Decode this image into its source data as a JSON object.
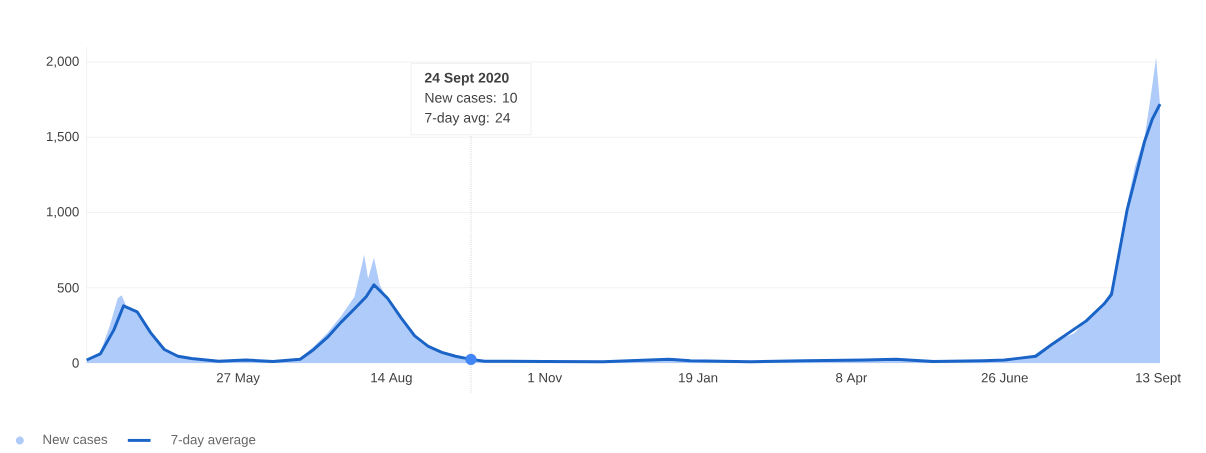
{
  "chart_data": {
    "type": "area",
    "xlim": [
      "2020-03-10",
      "2021-09-14"
    ],
    "ylim": [
      0,
      2100
    ],
    "xticks": [
      {
        "value": "2020-05-27",
        "label": "27 May"
      },
      {
        "value": "2020-08-14",
        "label": "14 Aug"
      },
      {
        "value": "2020-11-01",
        "label": "1 Nov"
      },
      {
        "value": "2021-01-19",
        "label": "19 Jan"
      },
      {
        "value": "2021-04-08",
        "label": "8 Apr"
      },
      {
        "value": "2021-06-26",
        "label": "26 June"
      },
      {
        "value": "2021-09-13",
        "label": "13 Sept"
      }
    ],
    "yticks": [
      {
        "value": 0,
        "label": "0"
      },
      {
        "value": 500,
        "label": "500"
      },
      {
        "value": 1000,
        "label": "1,000"
      },
      {
        "value": 1500,
        "label": "1,500"
      },
      {
        "value": 2000,
        "label": "2,000"
      }
    ],
    "grid": "y",
    "legend": "bottom left",
    "series": [
      {
        "name": "New cases",
        "color": "#aecbfa",
        "x": [
          "2020-03-10",
          "2020-03-17",
          "2020-03-22",
          "2020-03-26",
          "2020-03-28",
          "2020-03-31",
          "2020-04-05",
          "2020-04-12",
          "2020-04-19",
          "2020-04-26",
          "2020-05-10",
          "2020-05-24",
          "2020-06-14",
          "2020-06-28",
          "2020-07-05",
          "2020-07-12",
          "2020-07-19",
          "2020-07-26",
          "2020-07-31",
          "2020-08-02",
          "2020-08-05",
          "2020-08-08",
          "2020-08-12",
          "2020-08-19",
          "2020-08-26",
          "2020-09-02",
          "2020-09-09",
          "2020-09-16",
          "2020-09-24",
          "2020-10-15",
          "2020-12-01",
          "2021-01-04",
          "2021-02-15",
          "2021-04-15",
          "2021-05-01",
          "2021-06-15",
          "2021-07-10",
          "2021-07-21",
          "2021-08-01",
          "2021-08-07",
          "2021-08-16",
          "2021-08-20",
          "2021-08-28",
          "2021-09-01",
          "2021-09-06",
          "2021-09-09",
          "2021-09-12",
          "2021-09-14"
        ],
        "values": [
          20,
          70,
          250,
          430,
          450,
          360,
          330,
          190,
          90,
          45,
          15,
          15,
          10,
          30,
          110,
          200,
          310,
          440,
          720,
          560,
          700,
          520,
          420,
          290,
          170,
          100,
          65,
          40,
          10,
          10,
          8,
          25,
          8,
          20,
          25,
          15,
          45,
          140,
          200,
          290,
          400,
          480,
          1050,
          1300,
          1500,
          1750,
          2030,
          1720
        ]
      },
      {
        "name": "7-day average",
        "type": "line",
        "color": "#1a63c7",
        "line_style": "solid",
        "x": [
          "2020-03-10",
          "2020-03-17",
          "2020-03-24",
          "2020-03-29",
          "2020-04-05",
          "2020-04-12",
          "2020-04-19",
          "2020-04-26",
          "2020-05-03",
          "2020-05-17",
          "2020-05-31",
          "2020-06-14",
          "2020-06-28",
          "2020-07-05",
          "2020-07-12",
          "2020-07-19",
          "2020-07-26",
          "2020-08-01",
          "2020-08-05",
          "2020-08-12",
          "2020-08-19",
          "2020-08-26",
          "2020-09-02",
          "2020-09-09",
          "2020-09-16",
          "2020-09-24",
          "2020-10-01",
          "2020-11-01",
          "2020-12-01",
          "2021-01-04",
          "2021-01-15",
          "2021-02-15",
          "2021-03-15",
          "2021-04-15",
          "2021-05-01",
          "2021-05-20",
          "2021-06-15",
          "2021-06-26",
          "2021-07-12",
          "2021-07-21",
          "2021-08-07",
          "2021-08-16",
          "2021-08-20",
          "2021-08-28",
          "2021-09-06",
          "2021-09-10",
          "2021-09-14"
        ],
        "values": [
          20,
          60,
          220,
          380,
          340,
          200,
          90,
          45,
          30,
          12,
          20,
          10,
          25,
          90,
          170,
          270,
          360,
          440,
          520,
          430,
          300,
          180,
          110,
          70,
          45,
          24,
          12,
          10,
          8,
          25,
          15,
          8,
          15,
          20,
          25,
          10,
          15,
          20,
          45,
          130,
          280,
          390,
          455,
          1014,
          1470,
          1620,
          1720
        ]
      },
      {
        "type": "scatter",
        "color": "#4285f4",
        "x": [
          "2020-09-24"
        ],
        "values": [
          24
        ]
      }
    ],
    "ref_lines": [
      {
        "axis": "x",
        "value": "2020-09-24",
        "color": "#757575",
        "line_style": "dotted"
      }
    ],
    "annotations": [
      "24 Sept 2020",
      "New cases: 10",
      "7-day avg: 24"
    ]
  }
}
